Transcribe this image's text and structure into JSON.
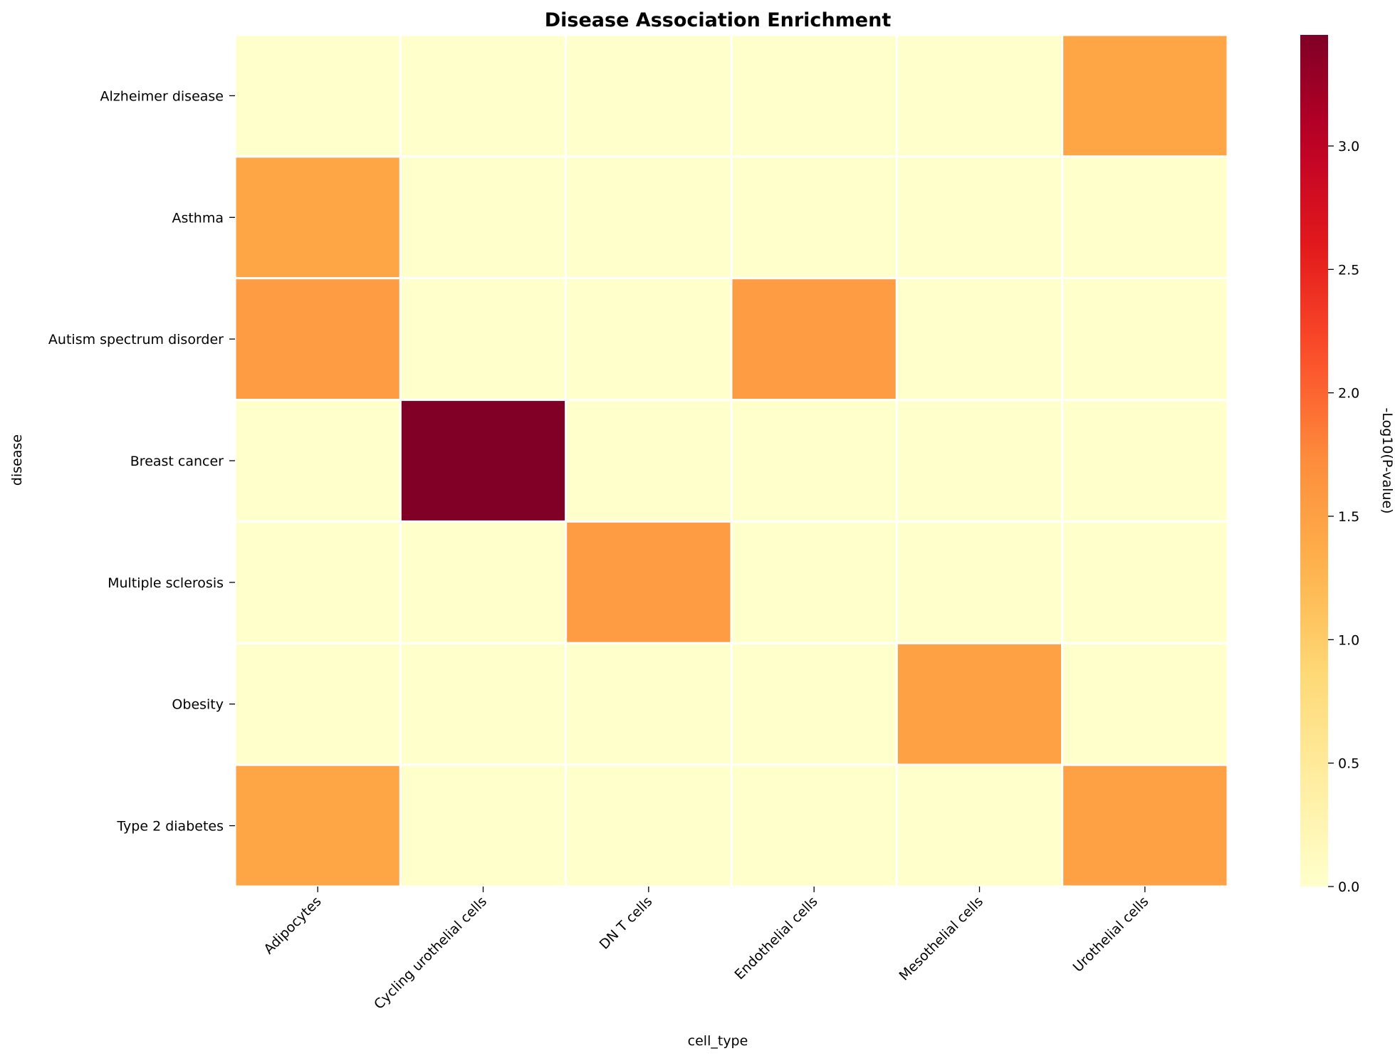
{
  "chart_data": {
    "type": "heatmap",
    "title": "Disease Association Enrichment",
    "xlabel": "cell_type",
    "ylabel": "disease",
    "x_categories": [
      "Adipocytes",
      "Cycling urothelial cells",
      "DN T cells",
      "Endothelial cells",
      "Mesothelial cells",
      "Urothelial cells"
    ],
    "y_categories": [
      "Alzheimer disease",
      "Asthma",
      "Autism spectrum disorder",
      "Breast cancer",
      "Multiple sclerosis",
      "Obesity",
      "Type 2 diabetes"
    ],
    "values": [
      [
        0,
        0,
        0,
        0,
        0,
        1.45
      ],
      [
        1.45,
        0,
        0,
        0,
        0,
        0
      ],
      [
        1.55,
        0,
        0,
        1.55,
        0,
        0
      ],
      [
        0,
        3.45,
        0,
        0,
        0,
        0
      ],
      [
        0,
        0,
        1.55,
        0,
        0,
        0
      ],
      [
        0,
        0,
        0,
        0,
        1.5,
        0
      ],
      [
        1.45,
        0,
        0,
        0,
        0,
        1.5
      ]
    ],
    "colorbar": {
      "label": "-Log10(P-value)",
      "range": [
        0,
        3.45
      ],
      "ticks": [
        "0.0",
        "0.5",
        "1.0",
        "1.5",
        "2.0",
        "2.5",
        "3.0"
      ],
      "colormap": "YlOrRd"
    },
    "grid": false
  }
}
